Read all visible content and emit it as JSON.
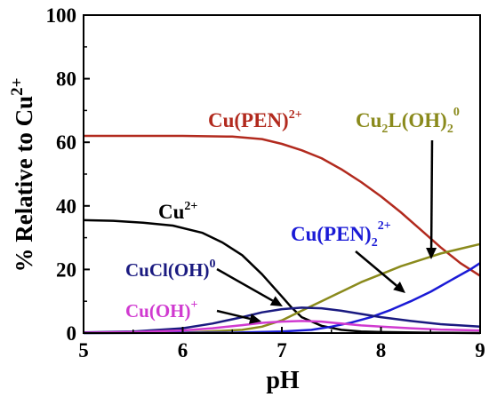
{
  "chart_data": {
    "type": "line",
    "xlabel": "pH",
    "ylabel": {
      "main": "% Relative to Cu",
      "sup": "2+"
    },
    "xlim": [
      5,
      9
    ],
    "ylim": [
      0,
      100
    ],
    "xticks": [
      "5",
      "6",
      "7",
      "8",
      "9"
    ],
    "yticks": [
      "0",
      "20",
      "40",
      "60",
      "80",
      "100"
    ],
    "grid": false,
    "legend": "none",
    "series": [
      {
        "key": "cu-pen",
        "color": "#b22a1e",
        "x": [
          5,
          5.5,
          6,
          6.5,
          6.8,
          7.0,
          7.2,
          7.4,
          7.6,
          7.8,
          8.0,
          8.2,
          8.4,
          8.6,
          8.8,
          9.0
        ],
        "y": [
          62,
          62,
          62,
          61.8,
          61,
          59.5,
          57.5,
          55,
          51.5,
          47.5,
          43,
          38,
          32.5,
          27,
          22,
          18
        ]
      },
      {
        "key": "cu2plus",
        "color": "#000000",
        "x": [
          5,
          5.3,
          5.6,
          5.9,
          6.2,
          6.4,
          6.6,
          6.8,
          7.0,
          7.1,
          7.2,
          7.4,
          7.6,
          7.8,
          8.0,
          8.5,
          9.0
        ],
        "y": [
          35.5,
          35.3,
          34.7,
          33.8,
          31.5,
          28.5,
          24.5,
          18.5,
          11.5,
          8,
          5,
          2.3,
          1.0,
          0.5,
          0.3,
          0.1,
          0
        ]
      },
      {
        "key": "cu2l-oh2",
        "color": "#8a8a1c",
        "x": [
          5,
          6.0,
          6.6,
          6.8,
          7.0,
          7.2,
          7.4,
          7.6,
          7.8,
          8.0,
          8.2,
          8.4,
          8.6,
          8.8,
          9.0
        ],
        "y": [
          0,
          0.1,
          1.0,
          2.0,
          4.0,
          7.0,
          10.0,
          13.0,
          16.0,
          18.5,
          21.0,
          23.0,
          25.0,
          26.5,
          28.0
        ]
      },
      {
        "key": "cu-pen2",
        "color": "#1a1ad6",
        "x": [
          5,
          6.5,
          7.0,
          7.3,
          7.5,
          7.7,
          7.9,
          8.1,
          8.3,
          8.5,
          8.7,
          8.9,
          9.0
        ],
        "y": [
          0,
          0.1,
          0.5,
          1.0,
          2.0,
          3.3,
          5.0,
          7.3,
          10.0,
          13.0,
          16.5,
          20.0,
          22.0
        ]
      },
      {
        "key": "cucl-oh",
        "color": "#1a1a80",
        "x": [
          5,
          5.5,
          6.0,
          6.3,
          6.6,
          6.8,
          7.0,
          7.2,
          7.4,
          7.6,
          7.8,
          8.0,
          8.3,
          8.6,
          9.0
        ],
        "y": [
          0.2,
          0.5,
          1.5,
          3.0,
          5.0,
          6.5,
          7.5,
          8.0,
          7.8,
          7.0,
          6.0,
          5.0,
          3.8,
          2.8,
          2.0
        ]
      },
      {
        "key": "cu-oh",
        "color": "#d03ad0",
        "x": [
          5,
          5.5,
          6.0,
          6.3,
          6.6,
          6.8,
          7.0,
          7.2,
          7.4,
          7.6,
          7.8,
          8.0,
          8.3,
          8.6,
          9.0
        ],
        "y": [
          0.1,
          0.3,
          0.8,
          1.5,
          2.5,
          3.2,
          3.6,
          3.8,
          3.6,
          3.0,
          2.4,
          2.0,
          1.5,
          1.1,
          0.8
        ]
      }
    ],
    "annotations": [
      {
        "key": "cu-pen",
        "text": "Cu(PEN)",
        "sub": "",
        "tail": ")",
        "sup": "2+",
        "color": "#b22a1e"
      },
      {
        "key": "cu2l-oh2",
        "text": "Cu",
        "sub": "2",
        "mid": "L(OH)",
        "sub2": "2",
        "sup": "0",
        "color": "#8a8a1c"
      },
      {
        "key": "cu2plus",
        "text": "Cu",
        "sup": "2+",
        "color": "#000000"
      },
      {
        "key": "cu-pen2",
        "text": "Cu(PEN)",
        "sub": "2",
        "sup": "2+",
        "color": "#1a1ad6"
      },
      {
        "key": "cucl-oh",
        "text": "CuCl(OH)",
        "sup": "0",
        "color": "#1a1a80"
      },
      {
        "key": "cu-oh",
        "text": "Cu(OH)",
        "sup": "+",
        "color": "#d03ad0"
      }
    ]
  }
}
